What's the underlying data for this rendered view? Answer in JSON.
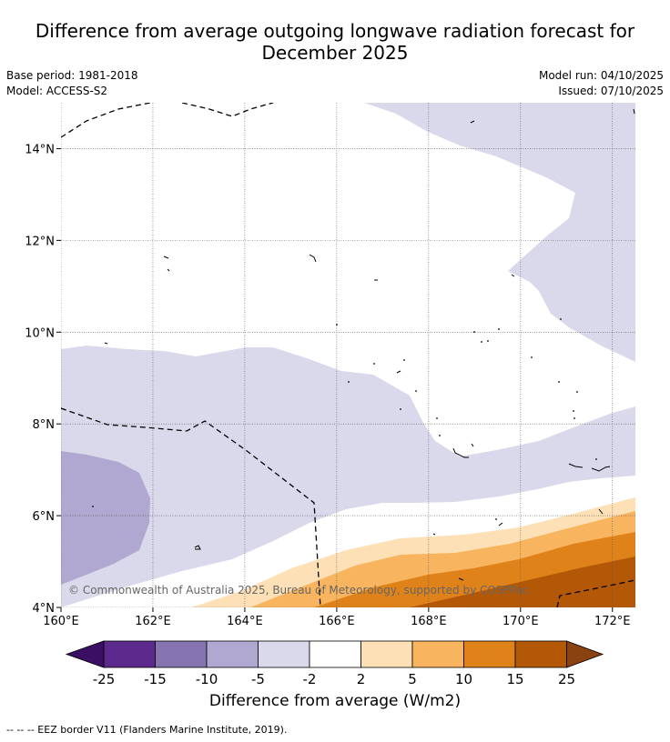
{
  "title_line1": "Difference from average outgoing longwave radiation forecast for",
  "title_line2": "December 2025",
  "meta": {
    "base_period": "Base period: 1981-2018",
    "model": "Model: ACCESS-S2",
    "model_run": "Model run: 04/10/2025",
    "issued": "Issued: 07/10/2025"
  },
  "map": {
    "lon_range": [
      160,
      172.5
    ],
    "lat_range": [
      4,
      15
    ],
    "lon_ticks": [
      160,
      162,
      164,
      166,
      168,
      170,
      172
    ],
    "lon_tick_labels": [
      "160°E",
      "162°E",
      "164°E",
      "166°E",
      "168°E",
      "170°E",
      "172°E"
    ],
    "lat_ticks": [
      4,
      6,
      8,
      10,
      12,
      14
    ],
    "lat_tick_labels": [
      "4°N",
      "6°N",
      "8°N",
      "10°N",
      "12°N",
      "14°N"
    ],
    "copyright": "© Commonwealth of Australia 2025, Bureau of Meteorology, supported by COSPPac"
  },
  "colorbar": {
    "label": "Difference from average (W/m2)",
    "tick_labels": [
      "-25",
      "-15",
      "-10",
      "-5",
      "-2",
      "2",
      "5",
      "10",
      "15",
      "25"
    ],
    "colors": [
      "#5c2a8d",
      "#8574b0",
      "#b0a8d1",
      "#d9d9eb",
      "#ffffff",
      "#fde0b6",
      "#f8b45e",
      "#e0821a",
      "#b35807"
    ],
    "extend_low_color": "#3b0f63",
    "extend_high_color": "#8a4210"
  },
  "footnote": "--  --  -- EEZ border V11 (Flanders Marine Institute, 2019)."
}
